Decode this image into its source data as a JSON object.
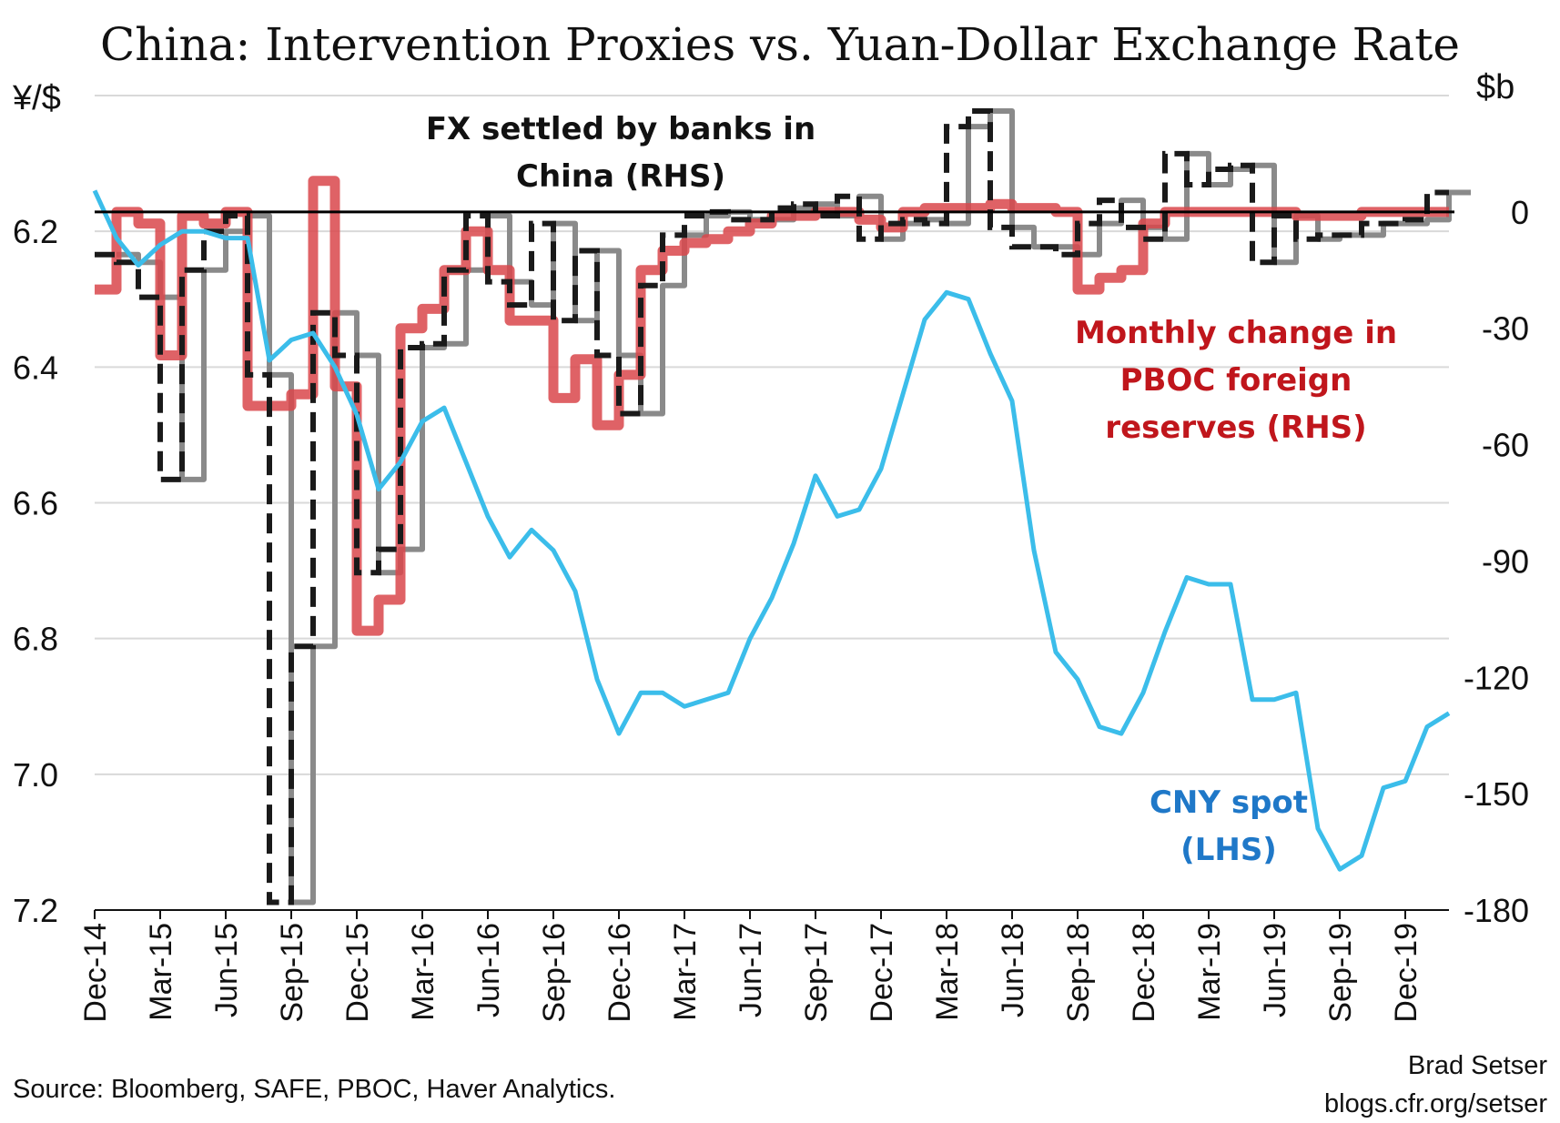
{
  "chart_data": {
    "type": "line",
    "title": "China: Intervention Proxies vs. Yuan-Dollar Exchange Rate",
    "left_axis": {
      "unit": "¥/$",
      "inverted": true,
      "range": [
        6.0,
        7.2
      ],
      "ticks": [
        "6.2",
        "6.4",
        "6.6",
        "6.8",
        "7.0",
        "7.2"
      ],
      "tick_values": [
        6.2,
        6.4,
        6.6,
        6.8,
        7.0,
        7.2
      ],
      "grid": true
    },
    "right_axis": {
      "unit": "$b",
      "range": [
        -180,
        30
      ],
      "ticks": [
        "0",
        "-30",
        "-60",
        "-90",
        "-120",
        "-150",
        "-180"
      ],
      "tick_values": [
        0,
        -30,
        -60,
        -90,
        -120,
        -150,
        -180
      ]
    },
    "x_axis": {
      "ticks": [
        "Dec-14",
        "Mar-15",
        "Jun-15",
        "Sep-15",
        "Dec-15",
        "Mar-16",
        "Jun-16",
        "Sep-16",
        "Dec-16",
        "Mar-17",
        "Jun-17",
        "Sep-17",
        "Dec-17",
        "Mar-18",
        "Jun-18",
        "Sep-18",
        "Dec-18",
        "Mar-19",
        "Jun-19",
        "Sep-19",
        "Dec-19"
      ],
      "start": "2014-12",
      "end": "2020-02"
    },
    "annotations": {
      "fx_settled": [
        "FX settled by banks in",
        "China (RHS)"
      ],
      "pboc": [
        "Monthly change in",
        "PBOC foreign",
        "reserves (RHS)"
      ],
      "cny": [
        "CNY spot",
        "(LHS)"
      ]
    },
    "colors": {
      "cny_spot": "#3bbdea",
      "pboc_reserves": "#d9474b",
      "fx_settled_black": "#1a1a1a",
      "fx_settled_gray": "#8a8a8a",
      "annotation_red": "#c0161c",
      "annotation_blue": "#1f78c8",
      "zero_line": "#000000",
      "grid": "#d9d9d9"
    },
    "series": [
      {
        "name": "CNY spot (LHS)",
        "axis": "left",
        "style": "line",
        "points": [
          [
            "2014-12",
            6.14
          ],
          [
            "2015-01",
            6.21
          ],
          [
            "2015-02",
            6.25
          ],
          [
            "2015-03",
            6.22
          ],
          [
            "2015-04",
            6.2
          ],
          [
            "2015-05",
            6.2
          ],
          [
            "2015-06",
            6.21
          ],
          [
            "2015-07",
            6.21
          ],
          [
            "2015-08",
            6.39
          ],
          [
            "2015-09",
            6.36
          ],
          [
            "2015-10",
            6.35
          ],
          [
            "2015-11",
            6.4
          ],
          [
            "2015-12",
            6.47
          ],
          [
            "2016-01",
            6.58
          ],
          [
            "2016-02",
            6.54
          ],
          [
            "2016-03",
            6.48
          ],
          [
            "2016-04",
            6.46
          ],
          [
            "2016-05",
            6.54
          ],
          [
            "2016-06",
            6.62
          ],
          [
            "2016-07",
            6.68
          ],
          [
            "2016-08",
            6.64
          ],
          [
            "2016-09",
            6.67
          ],
          [
            "2016-10",
            6.73
          ],
          [
            "2016-11",
            6.86
          ],
          [
            "2016-12",
            6.94
          ],
          [
            "2017-01",
            6.88
          ],
          [
            "2017-02",
            6.88
          ],
          [
            "2017-03",
            6.9
          ],
          [
            "2017-04",
            6.89
          ],
          [
            "2017-05",
            6.88
          ],
          [
            "2017-06",
            6.8
          ],
          [
            "2017-07",
            6.74
          ],
          [
            "2017-08",
            6.66
          ],
          [
            "2017-09",
            6.56
          ],
          [
            "2017-10",
            6.62
          ],
          [
            "2017-11",
            6.61
          ],
          [
            "2017-12",
            6.55
          ],
          [
            "2018-01",
            6.44
          ],
          [
            "2018-02",
            6.33
          ],
          [
            "2018-03",
            6.29
          ],
          [
            "2018-04",
            6.3
          ],
          [
            "2018-05",
            6.38
          ],
          [
            "2018-06",
            6.45
          ],
          [
            "2018-07",
            6.67
          ],
          [
            "2018-08",
            6.82
          ],
          [
            "2018-09",
            6.86
          ],
          [
            "2018-10",
            6.93
          ],
          [
            "2018-11",
            6.94
          ],
          [
            "2018-12",
            6.88
          ],
          [
            "2019-01",
            6.79
          ],
          [
            "2019-02",
            6.71
          ],
          [
            "2019-03",
            6.72
          ],
          [
            "2019-04",
            6.72
          ],
          [
            "2019-05",
            6.89
          ],
          [
            "2019-06",
            6.89
          ],
          [
            "2019-07",
            6.88
          ],
          [
            "2019-08",
            7.08
          ],
          [
            "2019-09",
            7.14
          ],
          [
            "2019-10",
            7.12
          ],
          [
            "2019-11",
            7.02
          ],
          [
            "2019-12",
            7.01
          ],
          [
            "2020-01",
            6.93
          ],
          [
            "2020-02",
            6.91
          ]
        ]
      },
      {
        "name": "Monthly change in PBOC foreign reserves (RHS)",
        "axis": "right",
        "style": "step",
        "points": [
          [
            "2014-12",
            -20
          ],
          [
            "2015-01",
            0
          ],
          [
            "2015-02",
            -3
          ],
          [
            "2015-03",
            -37
          ],
          [
            "2015-04",
            -1
          ],
          [
            "2015-05",
            -3
          ],
          [
            "2015-06",
            0
          ],
          [
            "2015-07",
            -50
          ],
          [
            "2015-08",
            -50
          ],
          [
            "2015-09",
            -47
          ],
          [
            "2015-10",
            8
          ],
          [
            "2015-11",
            -45
          ],
          [
            "2015-12",
            -108
          ],
          [
            "2016-01",
            -100
          ],
          [
            "2016-02",
            -30
          ],
          [
            "2016-03",
            -25
          ],
          [
            "2016-04",
            -15
          ],
          [
            "2016-05",
            -5
          ],
          [
            "2016-06",
            -15
          ],
          [
            "2016-07",
            -28
          ],
          [
            "2016-08",
            -28
          ],
          [
            "2016-09",
            -48
          ],
          [
            "2016-10",
            -38
          ],
          [
            "2016-11",
            -55
          ],
          [
            "2016-12",
            -42
          ],
          [
            "2017-01",
            -15
          ],
          [
            "2017-02",
            -10
          ],
          [
            "2017-03",
            -8
          ],
          [
            "2017-04",
            -7
          ],
          [
            "2017-05",
            -5
          ],
          [
            "2017-06",
            -3
          ],
          [
            "2017-07",
            -1
          ],
          [
            "2017-08",
            -1
          ],
          [
            "2017-09",
            0
          ],
          [
            "2017-10",
            0
          ],
          [
            "2017-11",
            -2
          ],
          [
            "2017-12",
            -4
          ],
          [
            "2018-01",
            0
          ],
          [
            "2018-02",
            1
          ],
          [
            "2018-03",
            1
          ],
          [
            "2018-04",
            1
          ],
          [
            "2018-05",
            2
          ],
          [
            "2018-06",
            1
          ],
          [
            "2018-07",
            1
          ],
          [
            "2018-08",
            0
          ],
          [
            "2018-09",
            -20
          ],
          [
            "2018-10",
            -17
          ],
          [
            "2018-11",
            -15
          ],
          [
            "2018-12",
            -3
          ],
          [
            "2019-01",
            0
          ],
          [
            "2019-02",
            0
          ],
          [
            "2019-03",
            0
          ],
          [
            "2019-04",
            0
          ],
          [
            "2019-05",
            0
          ],
          [
            "2019-06",
            0
          ],
          [
            "2019-07",
            -1
          ],
          [
            "2019-08",
            -1
          ],
          [
            "2019-09",
            -1
          ],
          [
            "2019-10",
            0
          ],
          [
            "2019-11",
            0
          ],
          [
            "2019-12",
            0
          ],
          [
            "2020-01",
            0
          ]
        ]
      },
      {
        "name": "FX settled by banks in China (RHS)",
        "axis": "right",
        "style": "step-dashed",
        "points": [
          [
            "2014-12",
            -11
          ],
          [
            "2015-01",
            -13
          ],
          [
            "2015-02",
            -22
          ],
          [
            "2015-03",
            -69
          ],
          [
            "2015-04",
            -15
          ],
          [
            "2015-05",
            -5
          ],
          [
            "2015-06",
            -1
          ],
          [
            "2015-07",
            -42
          ],
          [
            "2015-08",
            -178
          ],
          [
            "2015-09",
            -112
          ],
          [
            "2015-10",
            -26
          ],
          [
            "2015-11",
            -37
          ],
          [
            "2015-12",
            -93
          ],
          [
            "2016-01",
            -87
          ],
          [
            "2016-02",
            -35
          ],
          [
            "2016-03",
            -34
          ],
          [
            "2016-04",
            -15
          ],
          [
            "2016-05",
            -1
          ],
          [
            "2016-06",
            -18
          ],
          [
            "2016-07",
            -24
          ],
          [
            "2016-08",
            -3
          ],
          [
            "2016-09",
            -28
          ],
          [
            "2016-10",
            -10
          ],
          [
            "2016-11",
            -37
          ],
          [
            "2016-12",
            -52
          ],
          [
            "2017-01",
            -19
          ],
          [
            "2017-02",
            -6
          ],
          [
            "2017-03",
            -1
          ],
          [
            "2017-04",
            0
          ],
          [
            "2017-05",
            -2
          ],
          [
            "2017-06",
            -2
          ],
          [
            "2017-07",
            1
          ],
          [
            "2017-08",
            2
          ],
          [
            "2017-09",
            -1
          ],
          [
            "2017-10",
            4
          ],
          [
            "2017-11",
            -7
          ],
          [
            "2017-12",
            -3
          ],
          [
            "2018-01",
            -2
          ],
          [
            "2018-02",
            -3
          ],
          [
            "2018-03",
            22
          ],
          [
            "2018-04",
            26
          ],
          [
            "2018-05",
            -4
          ],
          [
            "2018-06",
            -9
          ],
          [
            "2018-07",
            -9
          ],
          [
            "2018-08",
            -11
          ],
          [
            "2018-09",
            -3
          ],
          [
            "2018-10",
            3
          ],
          [
            "2018-11",
            -4
          ],
          [
            "2018-12",
            -7
          ],
          [
            "2019-01",
            15
          ],
          [
            "2019-02",
            7
          ],
          [
            "2019-03",
            11
          ],
          [
            "2019-04",
            12
          ],
          [
            "2019-05",
            -13
          ],
          [
            "2019-06",
            -1
          ],
          [
            "2019-07",
            -7
          ],
          [
            "2019-08",
            -6
          ],
          [
            "2019-09",
            -6
          ],
          [
            "2019-10",
            -3
          ],
          [
            "2019-11",
            -3
          ],
          [
            "2019-12",
            -2
          ],
          [
            "2020-01",
            5
          ]
        ]
      }
    ]
  },
  "footer": {
    "source": "Source: Bloomberg, SAFE, PBOC, Haver Analytics.",
    "author": "Brad Setser",
    "blog": "blogs.cfr.org/setser"
  }
}
